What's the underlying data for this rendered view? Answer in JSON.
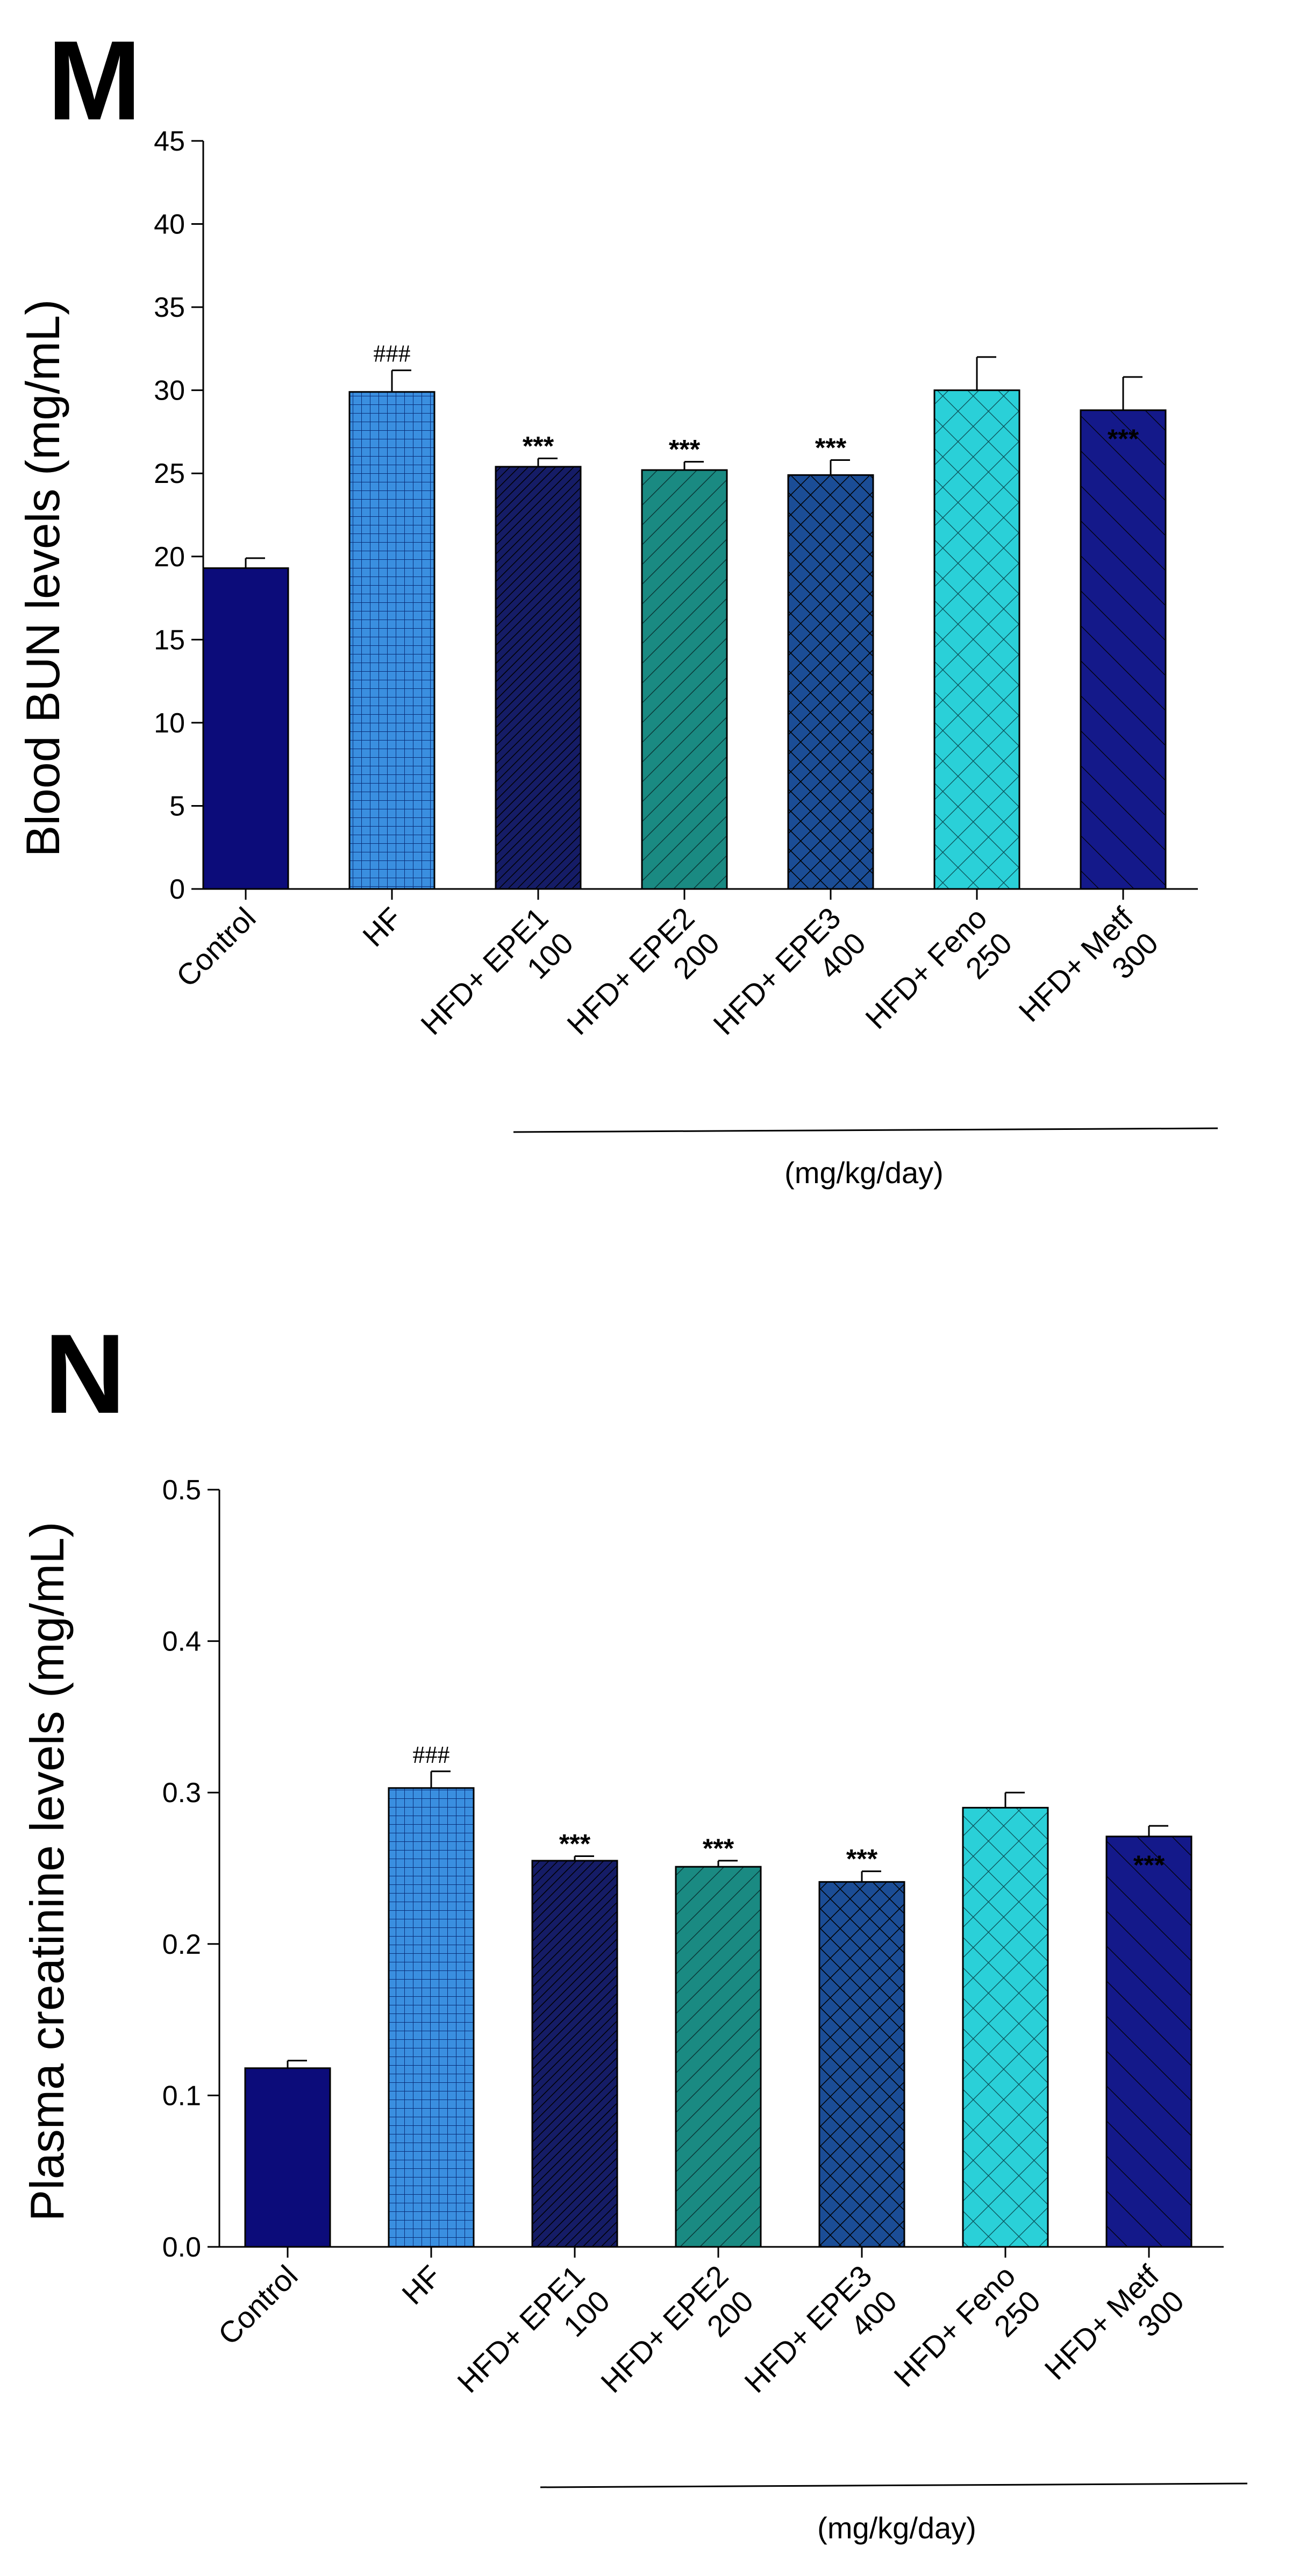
{
  "chart_data": [
    {
      "type": "bar",
      "panel_label": "M",
      "ylabel": "Blood BUN levels (mg/mL)",
      "unit_note": "(mg/kg/day)",
      "ylim": [
        0,
        45
      ],
      "yticks": [
        0,
        5,
        10,
        15,
        20,
        25,
        30,
        35,
        40,
        45
      ],
      "ytick_labels": [
        "0",
        "5",
        "10",
        "15",
        "20",
        "25",
        "30",
        "35",
        "40",
        "45"
      ],
      "categories": [
        [
          "Control"
        ],
        [
          "HF"
        ],
        [
          "HFD+ EPE1",
          "100"
        ],
        [
          "HFD+ EPE2",
          "200"
        ],
        [
          "HFD+ EPE3",
          "400"
        ],
        [
          "HFD+ Feno",
          "250"
        ],
        [
          "HFD+ Metf",
          "300"
        ]
      ],
      "values": [
        19.3,
        29.9,
        25.4,
        25.2,
        24.9,
        30.0,
        28.8
      ],
      "errors": [
        0.6,
        1.3,
        0.5,
        0.5,
        0.9,
        2.0,
        2.0
      ],
      "annotations": [
        "",
        "###",
        "***",
        "***",
        "***",
        "",
        "***"
      ],
      "fills": [
        "solid",
        "grid",
        "diag-dense",
        "diag",
        "crosshatch",
        "crosshatch-light",
        "diag-back"
      ],
      "colors": [
        "#0c0c7a",
        "#3a8fe0",
        "#151c66",
        "#1a8a82",
        "#1b4d96",
        "#2ad0d8",
        "#14198a"
      ]
    },
    {
      "type": "bar",
      "panel_label": "N",
      "ylabel": "Plasma creatinine levels (mg/mL)",
      "unit_note": "(mg/kg/day)",
      "ylim": [
        0,
        0.5
      ],
      "yticks": [
        0,
        0.1,
        0.2,
        0.3,
        0.4,
        0.5
      ],
      "ytick_labels": [
        "0.0",
        "0.1",
        "0.2",
        "0.3",
        "0.4",
        "0.5"
      ],
      "categories": [
        [
          "Control"
        ],
        [
          "HF"
        ],
        [
          "HFD+ EPE1",
          "100"
        ],
        [
          "HFD+ EPE2",
          "200"
        ],
        [
          "HFD+ EPE3",
          "400"
        ],
        [
          "HFD+ Feno",
          "250"
        ],
        [
          "HFD+ Metf",
          "300"
        ]
      ],
      "values": [
        0.118,
        0.303,
        0.255,
        0.251,
        0.241,
        0.29,
        0.271
      ],
      "errors": [
        0.005,
        0.011,
        0.003,
        0.004,
        0.007,
        0.01,
        0.007
      ],
      "annotations": [
        "",
        "###",
        "***",
        "***",
        "***",
        "",
        "***"
      ],
      "fills": [
        "solid",
        "grid",
        "diag-dense",
        "diag",
        "crosshatch",
        "crosshatch-light",
        "diag-back"
      ],
      "colors": [
        "#0c0c7a",
        "#3a8fe0",
        "#151c66",
        "#1a8a82",
        "#1b4d96",
        "#2ad0d8",
        "#14198a"
      ]
    }
  ]
}
